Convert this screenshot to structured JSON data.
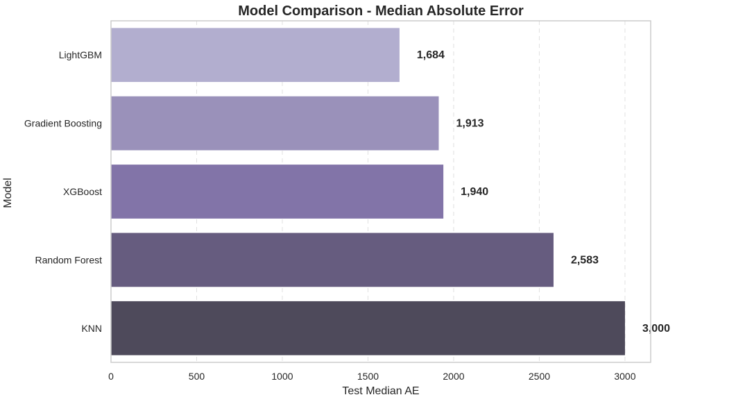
{
  "chart_data": {
    "type": "bar",
    "orientation": "horizontal",
    "title": "Model Comparison - Median Absolute Error",
    "xlabel": "Test Median AE",
    "ylabel": "Model",
    "categories": [
      "LightGBM",
      "Gradient Boosting",
      "XGBoost",
      "Random Forest",
      "KNN"
    ],
    "values": [
      1684,
      1913,
      1940,
      2583,
      3000
    ],
    "value_labels": [
      "1,684",
      "1,913",
      "1,940",
      "2,583",
      "3,000"
    ],
    "colors": [
      "#b2aecf",
      "#9a91ba",
      "#8274a8",
      "#665c7f",
      "#4e4a5b"
    ],
    "xlim": [
      0,
      3150
    ],
    "xticks": [
      0,
      500,
      1000,
      1500,
      2000,
      2500,
      3000
    ],
    "xtick_labels": [
      "0",
      "500",
      "1000",
      "1500",
      "2000",
      "2500",
      "3000"
    ],
    "grid": "x-dashed",
    "legend": "none"
  }
}
